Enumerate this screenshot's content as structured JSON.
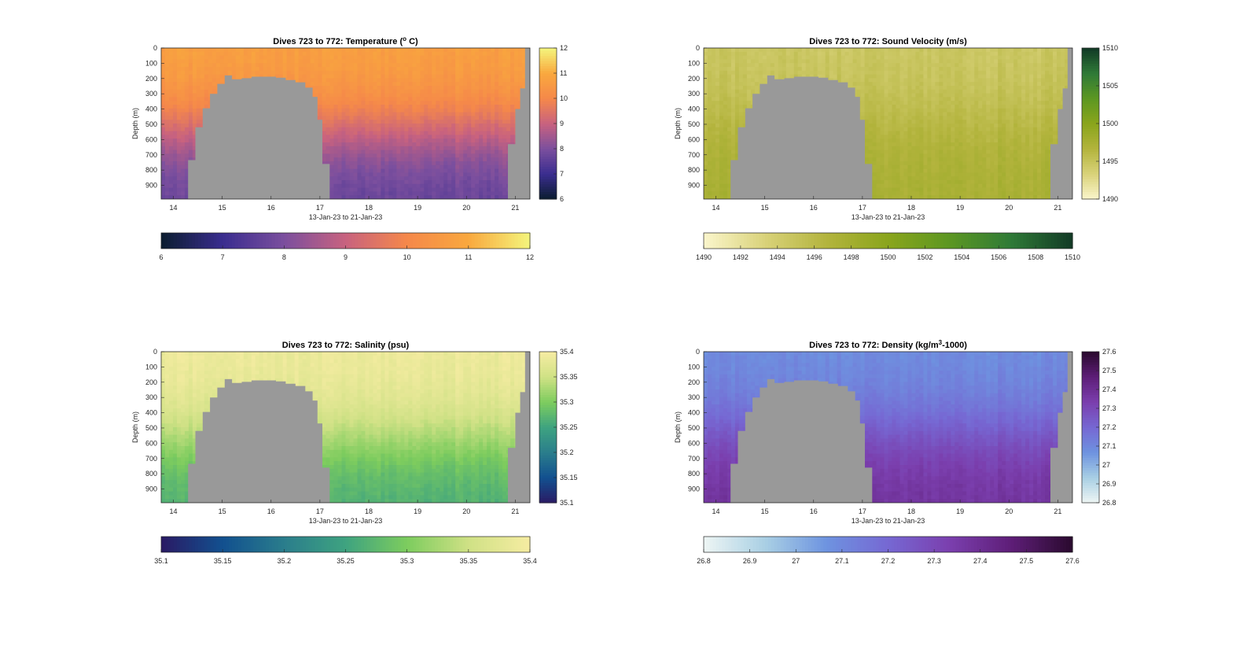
{
  "figure": {
    "background": "#ffffff",
    "mask_color": "#999999",
    "shared_xlabel": "13-Jan-23 to 21-Jan-23",
    "shared_ylabel": "Depth (m)"
  },
  "chart_data": [
    {
      "type": "heatmap",
      "title_pre": "Dives 723 to 772: Temperature (",
      "title_sup": "o",
      "title_post": " C)",
      "xlabel": "13-Jan-23 to 21-Jan-23",
      "ylabel": "Depth (m)",
      "xlim": [
        13.75,
        21.3
      ],
      "ylim": [
        0,
        990
      ],
      "y_reversed": true,
      "xticks": [
        14,
        15,
        16,
        17,
        18,
        19,
        20,
        21
      ],
      "yticks": [
        0,
        100,
        200,
        300,
        400,
        500,
        600,
        700,
        800,
        900
      ],
      "colormap": [
        "#0b1d2f",
        "#3a2d8f",
        "#7b4f9e",
        "#c8627f",
        "#f5884a",
        "#f9a83e",
        "#f4f57c"
      ],
      "clim": [
        6,
        12
      ],
      "colorbar_ticks": [
        6,
        7,
        8,
        9,
        10,
        11,
        12
      ],
      "colorbar_ticks_h": [
        6,
        7,
        8,
        9,
        10,
        11,
        12
      ],
      "profile": {
        "surface": 10.8,
        "deep": 7.6,
        "mid_depth": 520
      },
      "mask_color": "#999999"
    },
    {
      "type": "heatmap",
      "title_pre": "Dives 723 to 772: Sound Velocity (m/s)",
      "title_sup": "",
      "title_post": "",
      "xlabel": "13-Jan-23 to 21-Jan-23",
      "ylabel": "Depth (m)",
      "xlim": [
        13.75,
        21.3
      ],
      "ylim": [
        0,
        990
      ],
      "y_reversed": true,
      "xticks": [
        14,
        15,
        16,
        17,
        18,
        19,
        20,
        21
      ],
      "yticks": [
        0,
        100,
        200,
        300,
        400,
        500,
        600,
        700,
        800,
        900
      ],
      "colormap": [
        "#fbf6cc",
        "#d9d27a",
        "#b3b43d",
        "#8aa51c",
        "#5c9722",
        "#2f7a37",
        "#123a26"
      ],
      "clim": [
        1490,
        1510
      ],
      "colorbar_ticks": [
        1490,
        1495,
        1500,
        1505,
        1510
      ],
      "colorbar_ticks_h": [
        1490,
        1492,
        1494,
        1496,
        1498,
        1500,
        1502,
        1504,
        1506,
        1508,
        1510
      ],
      "profile": {
        "surface": 1494.5,
        "deep": 1497.5,
        "mid_depth": 450
      },
      "mask_color": "#999999"
    },
    {
      "type": "heatmap",
      "title_pre": "Dives 723 to 772: Salinity (psu)",
      "title_sup": "",
      "title_post": "",
      "xlabel": "13-Jan-23 to 21-Jan-23",
      "ylabel": "Depth (m)",
      "xlim": [
        13.75,
        21.3
      ],
      "ylim": [
        0,
        990
      ],
      "y_reversed": true,
      "xticks": [
        14,
        15,
        16,
        17,
        18,
        19,
        20,
        21
      ],
      "yticks": [
        0,
        100,
        200,
        300,
        400,
        500,
        600,
        700,
        800,
        900
      ],
      "colormap": [
        "#2a1a64",
        "#12508f",
        "#2a7d8c",
        "#3ea380",
        "#7dcc5e",
        "#cfe185",
        "#f6eca2"
      ],
      "clim": [
        35.1,
        35.4
      ],
      "colorbar_ticks": [
        35.1,
        35.15,
        35.2,
        35.25,
        35.3,
        35.35,
        35.4
      ],
      "colorbar_ticks_h": [
        35.1,
        35.15,
        35.2,
        35.25,
        35.3,
        35.35,
        35.4
      ],
      "profile": {
        "surface": 35.39,
        "deep": 35.26,
        "mid_depth": 560
      },
      "mask_color": "#999999"
    },
    {
      "type": "heatmap",
      "title_pre": "Dives 723 to 772: Density (kg/m",
      "title_sup": "3",
      "title_post": "-1000)",
      "xlabel": "13-Jan-23 to 21-Jan-23",
      "ylabel": "Depth (m)",
      "xlim": [
        13.75,
        21.3
      ],
      "ylim": [
        0,
        990
      ],
      "y_reversed": true,
      "xticks": [
        14,
        15,
        16,
        17,
        18,
        19,
        20,
        21
      ],
      "yticks": [
        0,
        100,
        200,
        300,
        400,
        500,
        600,
        700,
        800,
        900
      ],
      "colormap": [
        "#eef6f4",
        "#a9cfe4",
        "#6e93e0",
        "#7668d3",
        "#7b3fae",
        "#5e1e78",
        "#2a0a2e"
      ],
      "clim": [
        26.8,
        27.6
      ],
      "colorbar_ticks": [
        26.8,
        26.9,
        27,
        27.1,
        27.2,
        27.3,
        27.4,
        27.5,
        27.6
      ],
      "colorbar_ticks_h": [
        26.8,
        26.9,
        27,
        27.1,
        27.2,
        27.3,
        27.4,
        27.5,
        27.6
      ],
      "profile": {
        "surface": 27.08,
        "deep": 27.38,
        "mid_depth": 500
      },
      "mask_color": "#999999"
    }
  ]
}
